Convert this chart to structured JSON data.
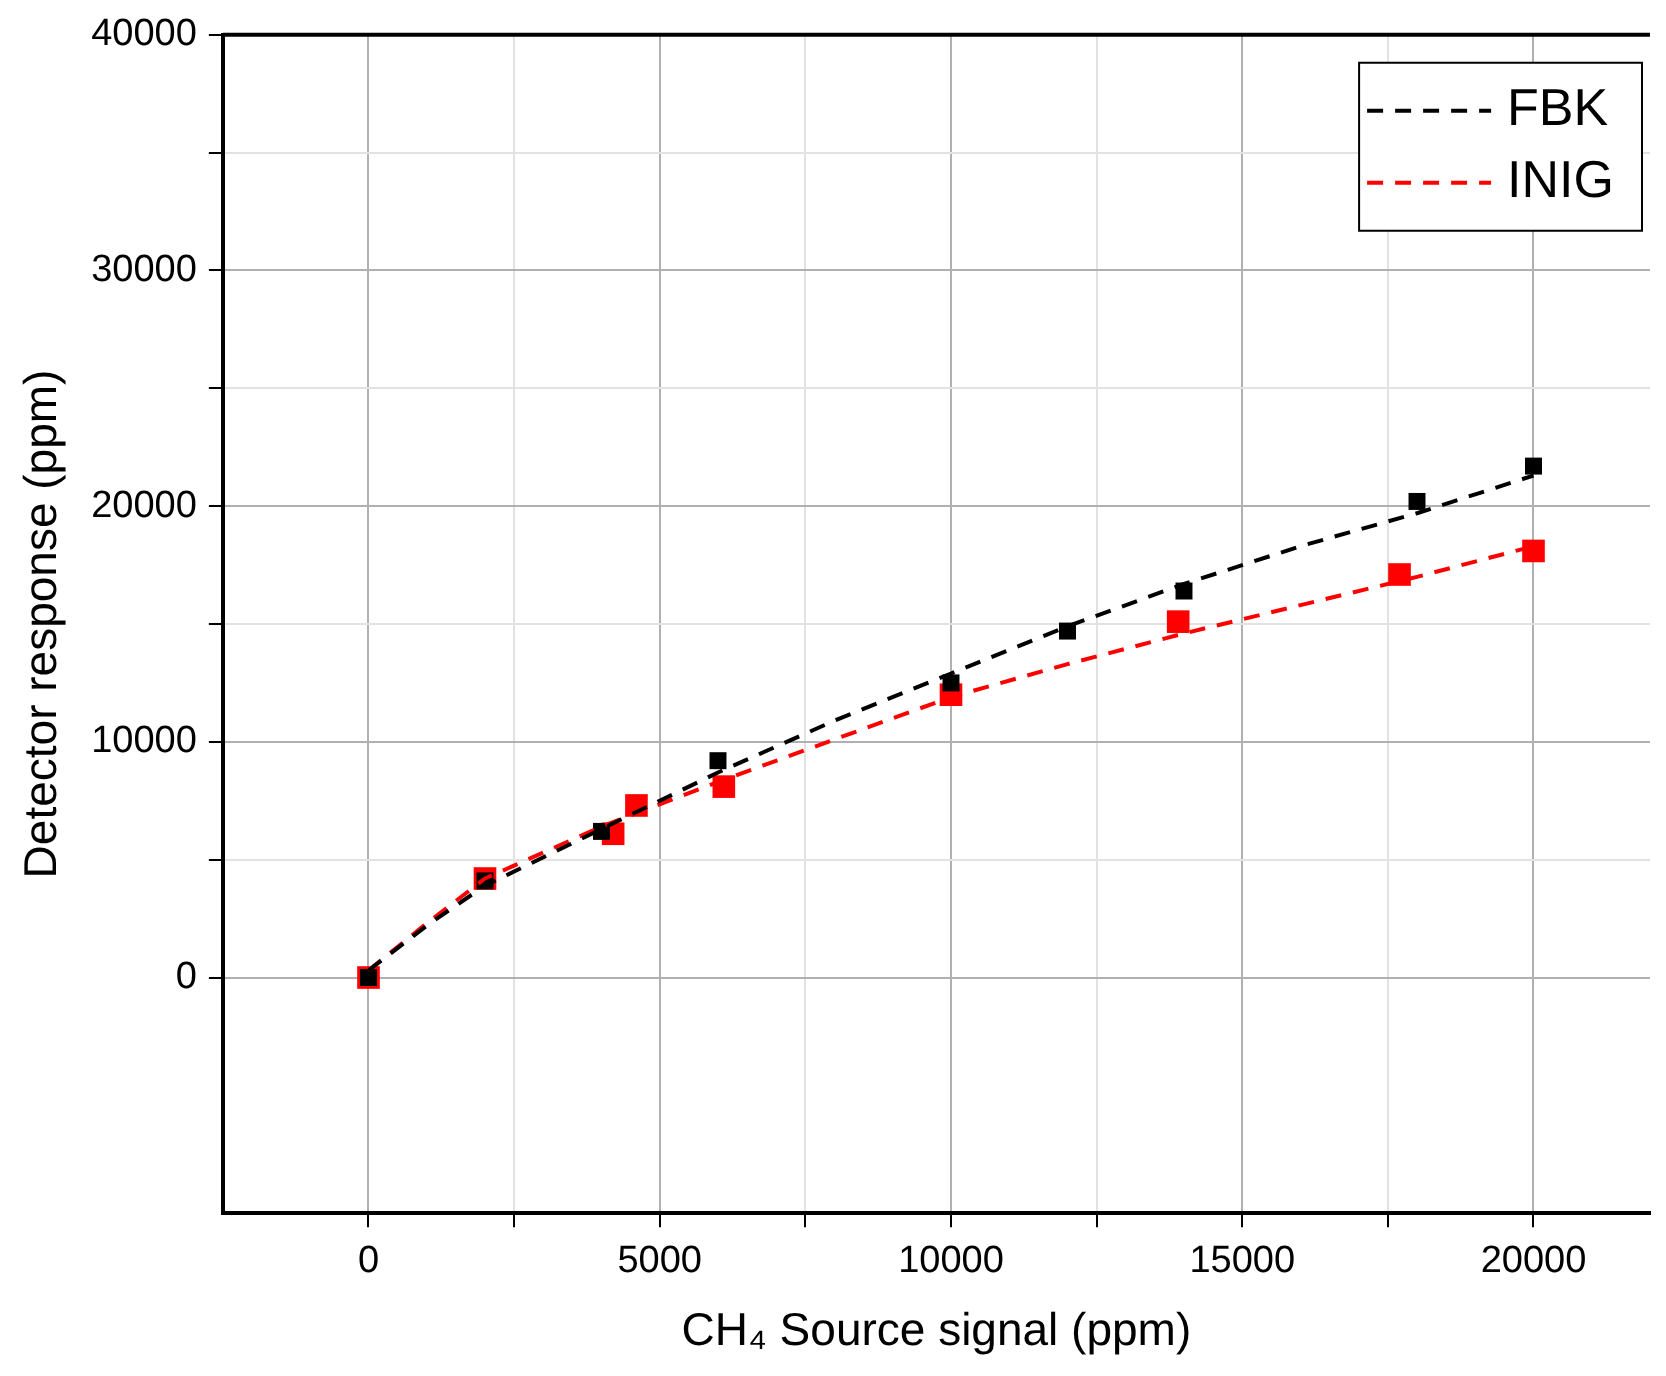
{
  "chart_data": {
    "type": "scatter",
    "xlabel": "CH₄ Source signal (ppm)",
    "ylabel": "Detector response (ppm)",
    "xlim": [
      -2500,
      22000
    ],
    "ylim": [
      -10000,
      40000
    ],
    "xticks": [
      0,
      {
        "value": 2500,
        "label": null
      },
      5000,
      {
        "value": 7500,
        "label": null
      },
      10000,
      {
        "value": 12500,
        "label": null
      },
      15000,
      {
        "value": 17500,
        "label": null
      },
      20000
    ],
    "yticks": [
      0,
      {
        "value": 5000,
        "label": null
      },
      10000,
      {
        "value": 15000,
        "label": null
      },
      20000,
      {
        "value": 25000,
        "label": null
      },
      30000,
      {
        "value": 35000,
        "label": null
      },
      40000
    ],
    "grid": true,
    "legend": "top right",
    "series": [
      {
        "name": "FBK",
        "type": "line",
        "line_style": "dashed",
        "marker": "none",
        "color": "#000000",
        "x": [
          0,
          1000,
          2000,
          4000,
          6000,
          8000,
          10000,
          12000,
          14000,
          16000,
          18000,
          20000
        ],
        "values": [
          300,
          2200,
          3900,
          6300,
          8700,
          10900,
          12900,
          14900,
          16700,
          18300,
          19700,
          21300
        ]
      },
      {
        "name": "INIG",
        "type": "line",
        "line_style": "dashed",
        "marker": "none",
        "color": "#ff0000",
        "x": [
          0,
          1000,
          2000,
          4000,
          6000,
          8000,
          10000,
          12000,
          14000,
          16000,
          18000,
          20000
        ],
        "values": [
          300,
          2300,
          4200,
          6400,
          8300,
          10100,
          11900,
          13300,
          14600,
          15800,
          17000,
          18300
        ]
      },
      {
        "type": "scatter",
        "marker": "square",
        "color": "#000000",
        "x": [
          0,
          2000,
          4000,
          6000,
          10000,
          12000,
          14000,
          18000,
          20000
        ],
        "values": [
          0,
          4100,
          6200,
          9200,
          12500,
          14700,
          16400,
          20200,
          21700
        ]
      },
      {
        "type": "scatter",
        "marker": "square",
        "color": "#ff0000",
        "x": [
          0,
          2000,
          4200,
          4600,
          6100,
          10000,
          13900,
          17700,
          20000
        ],
        "values": [
          0,
          4200,
          6100,
          7300,
          8100,
          12000,
          15100,
          17100,
          18100
        ]
      }
    ]
  }
}
